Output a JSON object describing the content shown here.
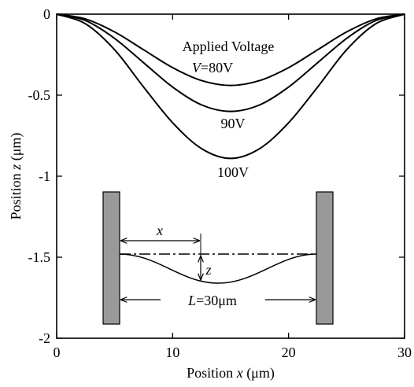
{
  "chart_data": {
    "type": "line",
    "xlabel": {
      "prefix": "Position ",
      "var": "x",
      "unit": " (μm)"
    },
    "ylabel": {
      "prefix": "Position ",
      "var": "z",
      "unit": " (μm)"
    },
    "xlim": [
      0,
      30
    ],
    "ylim": [
      -2,
      0
    ],
    "x_ticks": [
      0,
      10,
      20,
      30
    ],
    "x_tick_labels": [
      "0",
      "10",
      "20",
      "30"
    ],
    "y_ticks": [
      0,
      -0.5,
      -1,
      -1.5,
      -2
    ],
    "y_tick_labels": [
      "0",
      "-0.5",
      "-1",
      "-1.5",
      "-2"
    ],
    "grid": false,
    "line_color": "#000000",
    "series": [
      {
        "name": "80V",
        "x": [
          0,
          2.5,
          5,
          7.5,
          10,
          12.5,
          15,
          17.5,
          20,
          22.5,
          25,
          27.5,
          30
        ],
        "y": [
          0,
          -0.03,
          -0.11,
          -0.22,
          -0.33,
          -0.41,
          -0.44,
          -0.41,
          -0.33,
          -0.22,
          -0.11,
          -0.03,
          0
        ]
      },
      {
        "name": "90V",
        "x": [
          0,
          2.5,
          5,
          7.5,
          10,
          12.5,
          15,
          17.5,
          20,
          22.5,
          25,
          27.5,
          30
        ],
        "y": [
          0,
          -0.04,
          -0.15,
          -0.3,
          -0.45,
          -0.56,
          -0.6,
          -0.56,
          -0.45,
          -0.3,
          -0.15,
          -0.04,
          0
        ]
      },
      {
        "name": "100V",
        "x": [
          0,
          2.5,
          5,
          7.5,
          10,
          12.5,
          15,
          17.5,
          20,
          22.5,
          25,
          27.5,
          30
        ],
        "y": [
          0,
          -0.06,
          -0.22,
          -0.45,
          -0.67,
          -0.83,
          -0.89,
          -0.83,
          -0.67,
          -0.45,
          -0.22,
          -0.06,
          0
        ]
      }
    ],
    "annotations": {
      "title": "Applied Voltage",
      "label_80_var": "V",
      "label_80_rest": "=80V",
      "label_90": "90V",
      "label_100": "100V"
    },
    "inset": {
      "x_label": "x",
      "z_label": "z",
      "length_var": "L",
      "length_rest": "=30μm",
      "electrode_color": "#999999"
    }
  }
}
